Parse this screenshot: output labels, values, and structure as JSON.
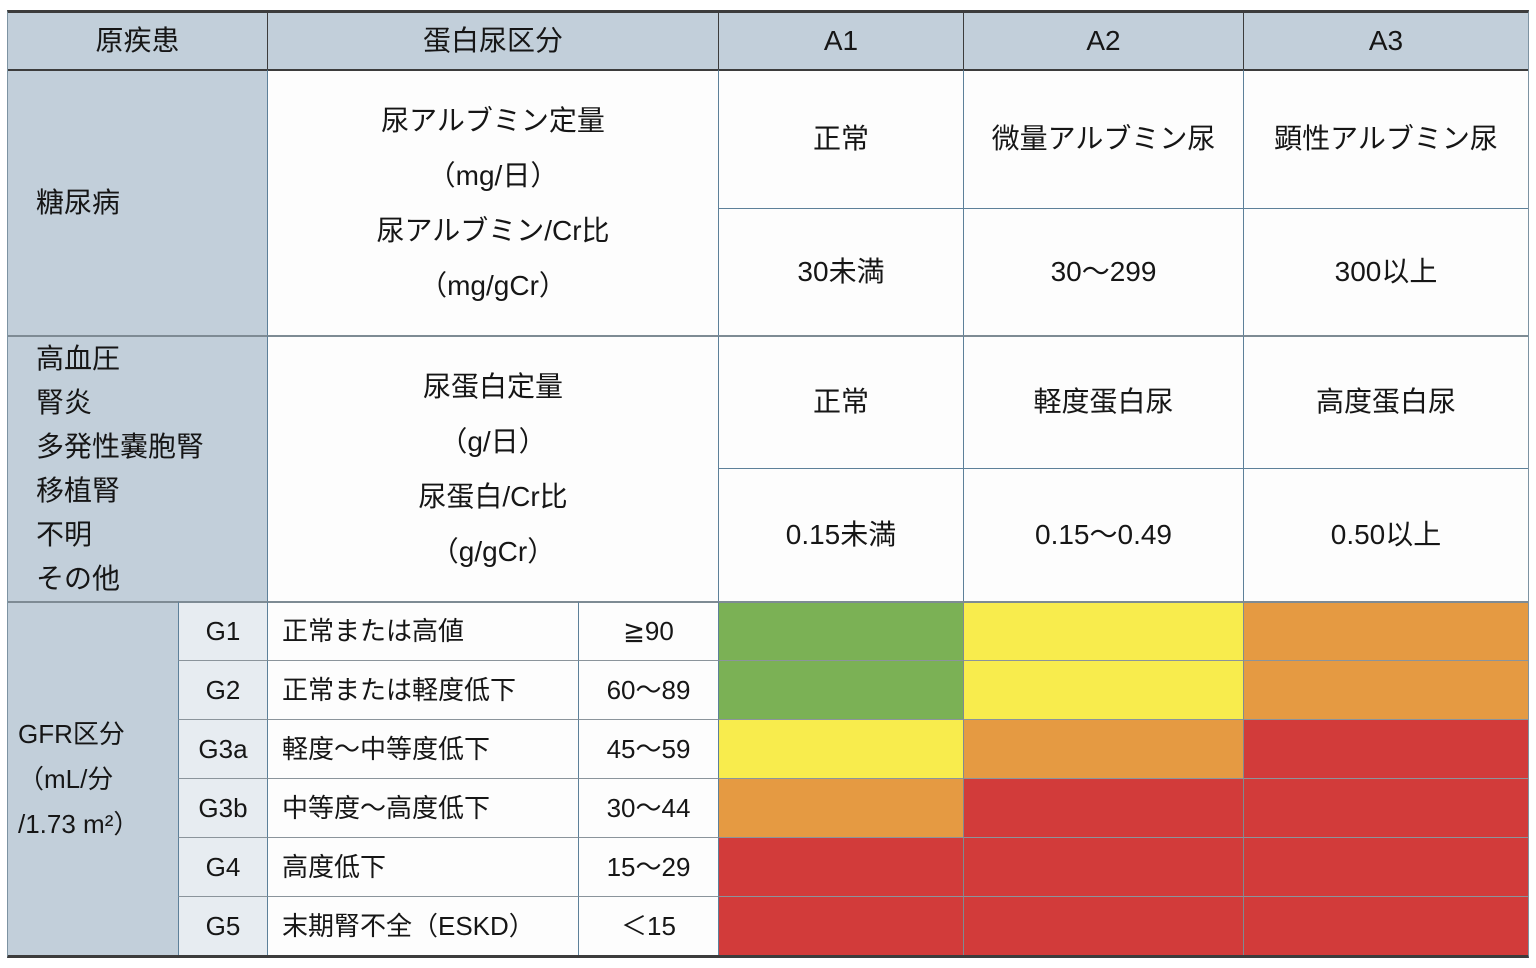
{
  "table": {
    "header": {
      "disease_col": "原疾患",
      "proteinuria_col": "蛋白尿区分",
      "a1": "A1",
      "a2": "A2",
      "a3": "A3"
    },
    "diabetes_section": {
      "disease": "糖尿病",
      "measure_lines": [
        "尿アルブミン定量",
        "（mg/日）",
        "尿アルブミン/Cr比",
        "（mg/gCr）"
      ],
      "category_a1": "正常",
      "category_a2": "微量アルブミン尿",
      "category_a3": "顕性アルブミン尿",
      "range_a1": "30未満",
      "range_a2": "30〜299",
      "range_a3": "300以上"
    },
    "other_section": {
      "diseases": [
        "高血圧",
        "腎炎",
        "多発性嚢胞腎",
        "移植腎",
        "不明",
        "その他"
      ],
      "measure_lines": [
        "尿蛋白定量",
        "（g/日）",
        "尿蛋白/Cr比",
        "（g/gCr）"
      ],
      "category_a1": "正常",
      "category_a2": "軽度蛋白尿",
      "category_a3": "高度蛋白尿",
      "range_a1": "0.15未満",
      "range_a2": "0.15〜0.49",
      "range_a3": "0.50以上"
    },
    "gfr_section": {
      "label_lines": [
        "GFR区分",
        "（mL/分",
        "/1.73 m²）"
      ],
      "rows": [
        {
          "grade": "G1",
          "description": "正常または高値",
          "range": "≧90",
          "risk_levels": [
            "green",
            "yellow",
            "orange"
          ]
        },
        {
          "grade": "G2",
          "description": "正常または軽度低下",
          "range": "60〜89",
          "risk_levels": [
            "green",
            "yellow",
            "orange"
          ]
        },
        {
          "grade": "G3a",
          "description": "軽度〜中等度低下",
          "range": "45〜59",
          "risk_levels": [
            "yellow",
            "orange",
            "red"
          ]
        },
        {
          "grade": "G3b",
          "description": "中等度〜高度低下",
          "range": "30〜44",
          "risk_levels": [
            "orange",
            "red",
            "red"
          ]
        },
        {
          "grade": "G4",
          "description": "高度低下",
          "range": "15〜29",
          "risk_levels": [
            "red",
            "red",
            "red"
          ]
        },
        {
          "grade": "G5",
          "description": "末期腎不全（ESKD）",
          "range": "＜15",
          "risk_levels": [
            "red",
            "red",
            "red"
          ]
        }
      ]
    },
    "risk_palette": {
      "green": "#7bb155",
      "yellow": "#f8ec4d",
      "orange": "#e59a42",
      "red": "#d23b3a"
    },
    "colors": {
      "header_bg": "#c2cfda",
      "grade_bg": "#e7ecf1"
    }
  }
}
